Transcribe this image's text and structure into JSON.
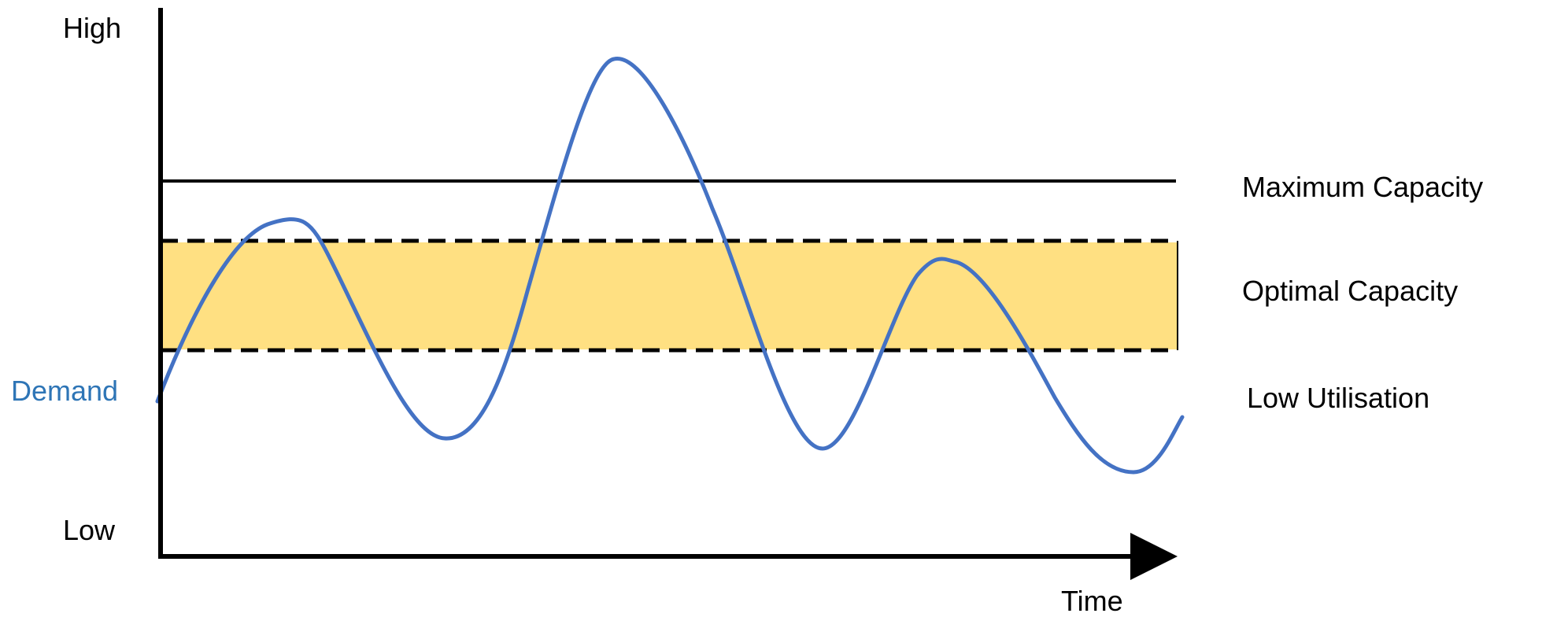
{
  "axes": {
    "y_high_label": "High",
    "y_low_label": "Low",
    "x_label": "Time"
  },
  "levels": {
    "maximum_capacity_label": "Maximum Capacity",
    "optimal_capacity_label": "Optimal Capacity",
    "low_utilisation_label": "Low Utilisation"
  },
  "demand": {
    "label": "Demand"
  },
  "colors": {
    "demand_line": "#4472C4",
    "demand_label": "#2E75B6",
    "optimal_band_fill": "#FFD966",
    "axis": "#000000"
  }
}
